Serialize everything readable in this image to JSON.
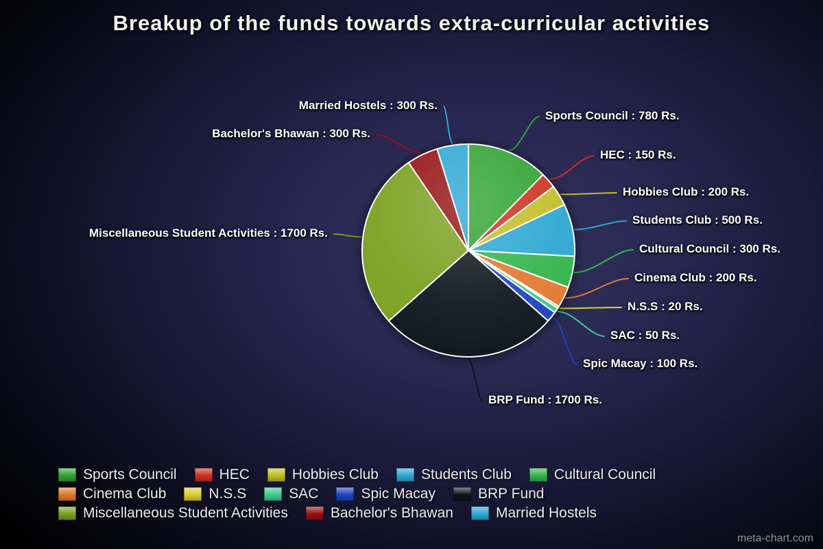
{
  "title": "Breakup of the funds towards extra-curricular activities",
  "watermark": "meta-chart.com",
  "chart_data": {
    "type": "pie",
    "title": "Breakup of the funds towards extra-curricular activities",
    "unit": "Rs.",
    "legend_position": "bottom",
    "label_format": "{label} : {value} Rs.",
    "slices": [
      {
        "label": "Sports Council",
        "value": 780,
        "color": "#2fa230"
      },
      {
        "label": "HEC",
        "value": 150,
        "color": "#cc2f1d"
      },
      {
        "label": "Hobbies Club",
        "value": 200,
        "color": "#c2bd25"
      },
      {
        "label": "Students Club",
        "value": 500,
        "color": "#2aa6d2"
      },
      {
        "label": "Cultural Council",
        "value": 300,
        "color": "#31b44b"
      },
      {
        "label": "Cinema Club",
        "value": 200,
        "color": "#e2782f"
      },
      {
        "label": "N.S.S",
        "value": 20,
        "color": "#dcce32"
      },
      {
        "label": "SAC",
        "value": 50,
        "color": "#3fc98e"
      },
      {
        "label": "Spic Macay",
        "value": 100,
        "color": "#1e42c0"
      },
      {
        "label": "BRP Fund",
        "value": 1700,
        "color": "#0c151c"
      },
      {
        "label": "Miscellaneous Student Activities",
        "value": 1700,
        "color": "#79a01e"
      },
      {
        "label": "Bachelor's Bhawan",
        "value": 300,
        "color": "#941111"
      },
      {
        "label": "Married Hostels",
        "value": 300,
        "color": "#2ba7d4"
      }
    ]
  }
}
